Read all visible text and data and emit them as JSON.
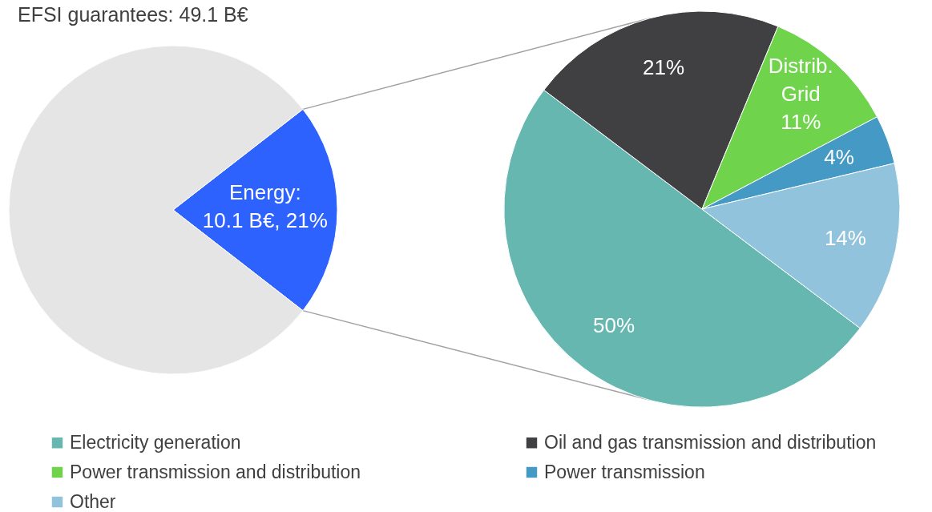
{
  "chart_data": [
    {
      "type": "pie",
      "title": "EFSI guarantees: 49.1 B€",
      "categories": [
        null,
        null
      ],
      "values": [
        21,
        79
      ],
      "colors": [
        "#2e62ff",
        "#e5e5e5"
      ],
      "value_labels": [
        "Energy:\n10.1 B€, 21%",
        null
      ],
      "legend": false
    },
    {
      "type": "pie",
      "categories": [
        "Electricity generation",
        "Oil and gas transmission and distribution",
        "Power transmission and distribution",
        "Power transmission",
        "Other"
      ],
      "values": [
        50,
        21,
        11,
        4,
        14
      ],
      "colors": [
        "#67b7b1",
        "#404042",
        "#6fd44b",
        "#4599c5",
        "#92c3dc"
      ],
      "value_labels": [
        "50%",
        "21%",
        "Distrib.\nGrid\n11%",
        "4%",
        "14%"
      ],
      "legend": "bottom"
    }
  ]
}
